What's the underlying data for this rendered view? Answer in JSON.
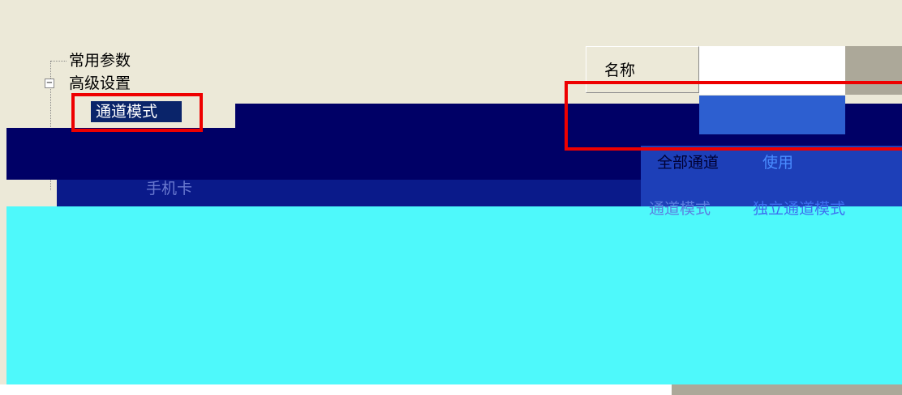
{
  "tree": {
    "items": [
      {
        "label": "常用参数"
      },
      {
        "label": "高级设置"
      },
      {
        "label": "通道模式"
      },
      {
        "label": "手机卡"
      }
    ]
  },
  "list": {
    "header": [
      "名称"
    ],
    "rows": [
      [
        "全部通道",
        "使用"
      ],
      [
        "通道模式",
        "独立通道模式"
      ]
    ]
  }
}
